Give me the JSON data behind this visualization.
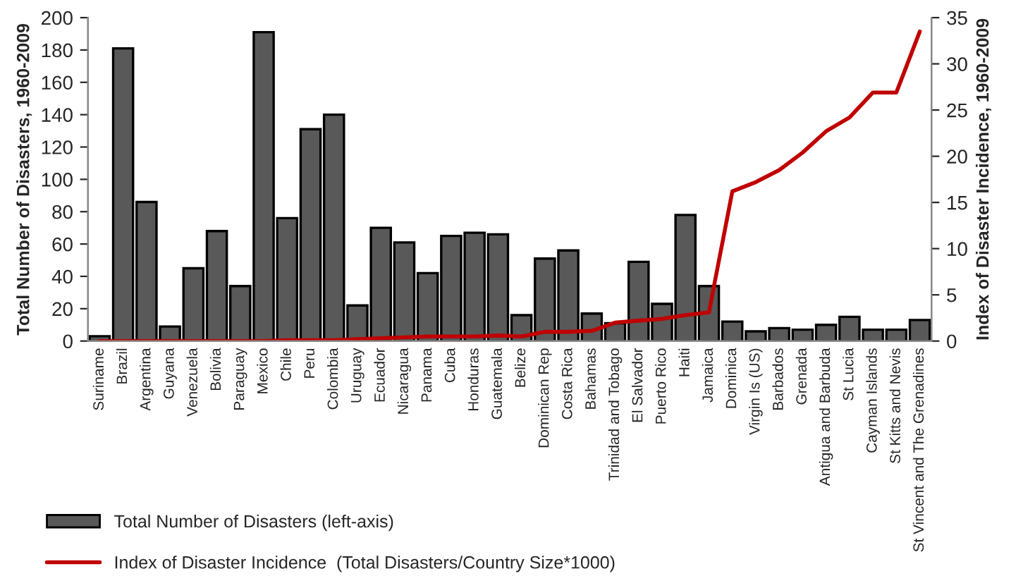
{
  "chart_data": {
    "type": "bar",
    "ylabel": "Total Number of Disasters, 1960-2009",
    "y2label": "Index of Disaster Incidence, 1960-2009",
    "categories": [
      "Suriname",
      "Brazil",
      "Argentina",
      "Guyana",
      "Venezuela",
      "Bolivia",
      "Paraguay",
      "Mexico",
      "Chile",
      "Peru",
      "Colombia",
      "Uruguay",
      "Ecuador",
      "Nicaragua",
      "Panama",
      "Cuba",
      "Honduras",
      "Guatemala",
      "Belize",
      "Dominican Rep",
      "Costa Rica",
      "Bahamas",
      "Trinidad and Tobago",
      "El Salvador",
      "Puerto Rico",
      "Haiti",
      "Jamaica",
      "Dominica",
      "Virgin Is (US)",
      "Barbados",
      "Grenada",
      "Antigua and Barbuda",
      "St Lucia",
      "Cayman Islands",
      "St Kitts and Nevis",
      "St Vincent and The Grenadines"
    ],
    "series": [
      {
        "name": "Total Number of Disasters (left-axis)",
        "color": "#595959",
        "values": [
          3,
          181,
          86,
          9,
          45,
          68,
          34,
          191,
          76,
          131,
          140,
          22,
          70,
          61,
          42,
          65,
          67,
          66,
          16,
          51,
          56,
          17,
          11,
          49,
          23,
          78,
          34,
          12,
          6,
          8,
          7,
          10,
          15,
          7,
          7,
          13
        ]
      },
      {
        "name": "Index of Disaster Incidence  (Total Disasters/Country Size*1000)",
        "type": "line",
        "axis": "y2",
        "color": "#c00000",
        "values": [
          0,
          0,
          0,
          0,
          0,
          0,
          0,
          0,
          0.1,
          0.1,
          0.1,
          0.2,
          0.3,
          0.4,
          0.5,
          0.5,
          0.5,
          0.6,
          0.5,
          1.0,
          1.0,
          1.1,
          2.0,
          2.2,
          2.4,
          2.8,
          3.1,
          16.2,
          17.2,
          18.5,
          20.4,
          22.7,
          24.2,
          26.9,
          26.9,
          33.5
        ]
      }
    ],
    "ylim": [
      0,
      200
    ],
    "yticks": [
      0,
      20,
      40,
      60,
      80,
      100,
      120,
      140,
      160,
      180,
      200
    ],
    "y2lim": [
      0,
      35
    ],
    "y2ticks": [
      0,
      5,
      10,
      15,
      20,
      25,
      30,
      35
    ],
    "grid": false,
    "legend": "bottom left",
    "marker": "none",
    "line_style": "solid"
  }
}
